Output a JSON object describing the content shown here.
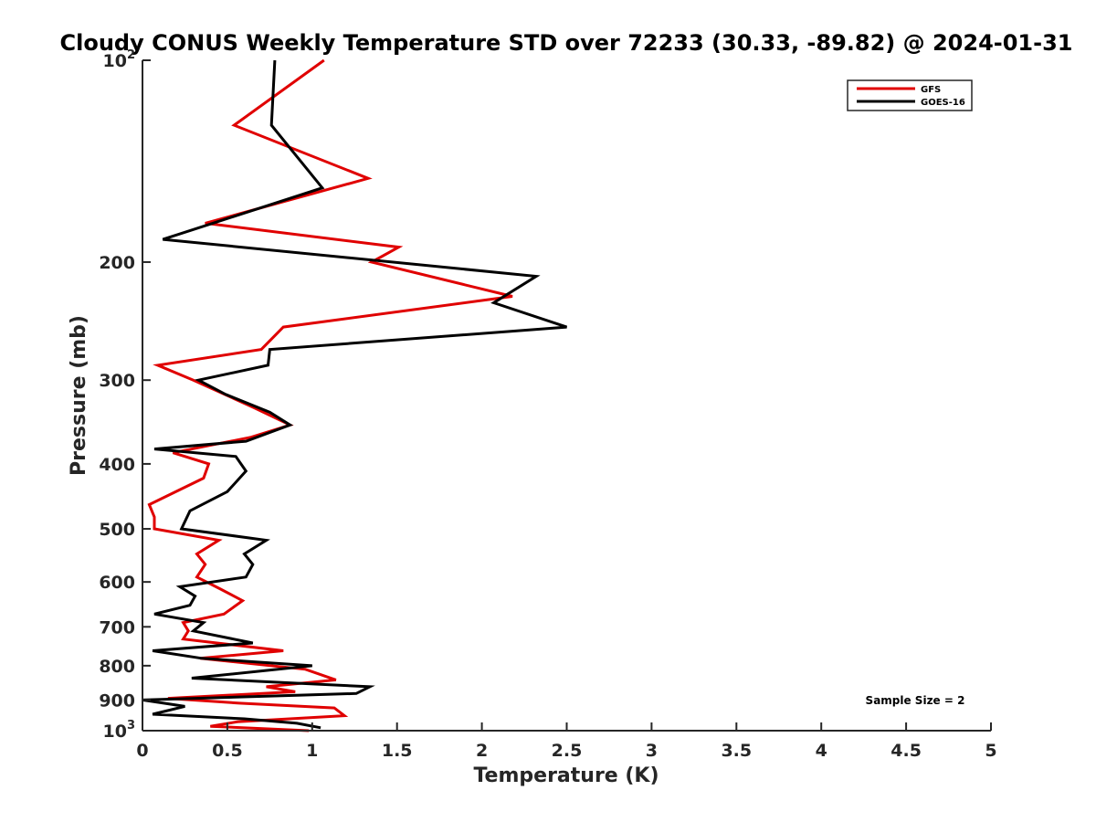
{
  "chart_data": {
    "type": "line",
    "title": "Cloudy CONUS Weekly Temperature STD over 72233 (30.33, -89.82) @ 2024-01-31",
    "xlabel": "Temperature (K)",
    "ylabel": "Pressure (mb)",
    "xlim": [
      0,
      5
    ],
    "ylim": [
      100,
      1000
    ],
    "yscale": "log",
    "y_reversed": true,
    "grid": false,
    "xticks": [
      0,
      0.5,
      1,
      1.5,
      2,
      2.5,
      3,
      3.5,
      4,
      4.5,
      5
    ],
    "xtick_labels": [
      "0",
      "0.5",
      "1",
      "1.5",
      "2",
      "2.5",
      "3",
      "3.5",
      "4",
      "4.5",
      "5"
    ],
    "yticks": [
      {
        "value": 100,
        "base": "10",
        "exp": "2"
      },
      {
        "value": 200,
        "label": "200"
      },
      {
        "value": 300,
        "label": "300"
      },
      {
        "value": 400,
        "label": "400"
      },
      {
        "value": 500,
        "label": "500"
      },
      {
        "value": 600,
        "label": "600"
      },
      {
        "value": 700,
        "label": "700"
      },
      {
        "value": 800,
        "label": "800"
      },
      {
        "value": 900,
        "label": "900"
      },
      {
        "value": 1000,
        "base": "10",
        "exp": "3"
      }
    ],
    "legend_position": "top-right",
    "annotation": "Sample Size = 2",
    "series": [
      {
        "name": "GFS",
        "color": "#e00000",
        "points": [
          [
            1.07,
            100
          ],
          [
            0.54,
            125
          ],
          [
            1.33,
            150
          ],
          [
            0.37,
            175
          ],
          [
            1.51,
            190
          ],
          [
            1.35,
            200
          ],
          [
            2.18,
            225
          ],
          [
            0.83,
            250
          ],
          [
            0.7,
            270
          ],
          [
            0.09,
            285
          ],
          [
            0.3,
            300
          ],
          [
            0.66,
            330
          ],
          [
            0.87,
            350
          ],
          [
            0.64,
            365
          ],
          [
            0.18,
            385
          ],
          [
            0.39,
            400
          ],
          [
            0.36,
            420
          ],
          [
            0.04,
            460
          ],
          [
            0.07,
            480
          ],
          [
            0.07,
            500
          ],
          [
            0.45,
            520
          ],
          [
            0.32,
            545
          ],
          [
            0.37,
            565
          ],
          [
            0.32,
            590
          ],
          [
            0.46,
            615
          ],
          [
            0.59,
            640
          ],
          [
            0.48,
            670
          ],
          [
            0.24,
            690
          ],
          [
            0.27,
            710
          ],
          [
            0.24,
            730
          ],
          [
            0.83,
            760
          ],
          [
            0.34,
            780
          ],
          [
            0.96,
            810
          ],
          [
            1.14,
            840
          ],
          [
            0.73,
            860
          ],
          [
            0.9,
            875
          ],
          [
            0.15,
            895
          ],
          [
            0.57,
            910
          ],
          [
            1.13,
            925
          ],
          [
            1.19,
            950
          ],
          [
            0.56,
            970
          ],
          [
            0.4,
            985
          ],
          [
            0.98,
            1000
          ]
        ]
      },
      {
        "name": "GOES-16",
        "color": "#000000",
        "points": [
          [
            0.78,
            100
          ],
          [
            0.76,
            125
          ],
          [
            1.06,
            155
          ],
          [
            0.12,
            185
          ],
          [
            2.32,
            210
          ],
          [
            2.07,
            230
          ],
          [
            2.5,
            250
          ],
          [
            0.75,
            270
          ],
          [
            0.74,
            285
          ],
          [
            0.33,
            300
          ],
          [
            0.49,
            315
          ],
          [
            0.75,
            335
          ],
          [
            0.87,
            350
          ],
          [
            0.61,
            370
          ],
          [
            0.07,
            380
          ],
          [
            0.55,
            390
          ],
          [
            0.61,
            410
          ],
          [
            0.5,
            440
          ],
          [
            0.28,
            470
          ],
          [
            0.23,
            500
          ],
          [
            0.73,
            520
          ],
          [
            0.6,
            545
          ],
          [
            0.65,
            565
          ],
          [
            0.61,
            590
          ],
          [
            0.22,
            610
          ],
          [
            0.31,
            630
          ],
          [
            0.28,
            650
          ],
          [
            0.07,
            670
          ],
          [
            0.36,
            690
          ],
          [
            0.3,
            710
          ],
          [
            0.65,
            740
          ],
          [
            0.06,
            760
          ],
          [
            0.35,
            780
          ],
          [
            1.0,
            800
          ],
          [
            0.29,
            835
          ],
          [
            1.34,
            860
          ],
          [
            1.26,
            880
          ],
          [
            0.0,
            900
          ],
          [
            0.25,
            920
          ],
          [
            0.06,
            945
          ],
          [
            0.6,
            960
          ],
          [
            0.91,
            975
          ],
          [
            1.05,
            990
          ]
        ]
      }
    ]
  }
}
